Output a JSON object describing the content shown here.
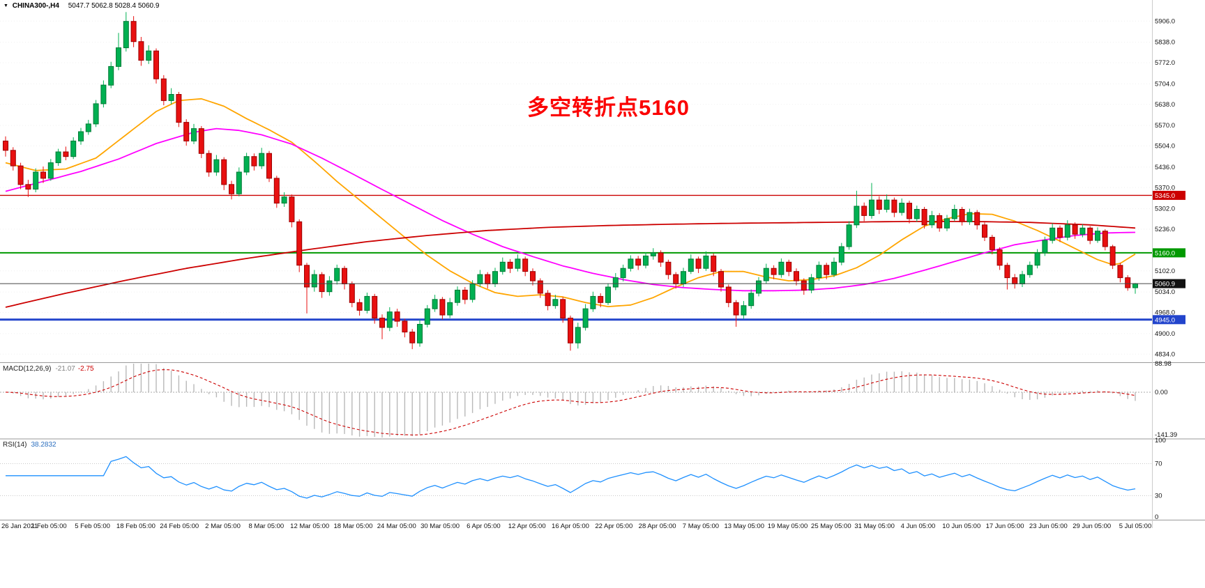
{
  "window": {
    "symbol": "CHINA300-,H4",
    "ohlc": "5047.7 5062.8 5028.4 5060.9",
    "collapse_icon": "▼"
  },
  "annotation": {
    "text": "多空转折点5160",
    "color": "#FB0202"
  },
  "indicators": {
    "macd": {
      "label": "MACD(12,26,9)",
      "value_main": "-21.07",
      "value_signal": "-2.75",
      "scale": [
        "88.98",
        "0.00",
        "-141.39"
      ]
    },
    "rsi": {
      "label": "RSI(14)",
      "value": "38.2832",
      "scale": [
        "100",
        "70",
        "30",
        "0"
      ],
      "levels": [
        70,
        30
      ]
    }
  },
  "chart_data": {
    "type": "candlestick",
    "title": "CHINA300-,H4",
    "up_color": "#00b052",
    "down_color": "#e81010",
    "y_range": [
      4810,
      5938
    ],
    "y_ticks": [
      "5906.0",
      "5838.0",
      "5772.0",
      "5704.0",
      "5638.0",
      "5570.0",
      "5504.0",
      "5436.0",
      "5370.0",
      "5302.0",
      "5236.0",
      "5102.0",
      "5034.0",
      "4968.0",
      "4900.0",
      "4834.0"
    ],
    "x_ticks": [
      "26 Jan 2021",
      "1 Feb 05:00",
      "5 Feb 05:00",
      "18 Feb 05:00",
      "24 Feb 05:00",
      "2 Mar 05:00",
      "8 Mar 05:00",
      "12 Mar 05:00",
      "18 Mar 05:00",
      "24 Mar 05:00",
      "30 Mar 05:00",
      "6 Apr 05:00",
      "12 Apr 05:00",
      "16 Apr 05:00",
      "22 Apr 05:00",
      "28 Apr 05:00",
      "7 May 05:00",
      "13 May 05:00",
      "19 May 05:00",
      "25 May 05:00",
      "31 May 05:00",
      "4 Jun 05:00",
      "10 Jun 05:00",
      "17 Jun 05:00",
      "23 Jun 05:00",
      "29 Jun 05:00",
      "5 Jul 05:00"
    ],
    "hlines": [
      {
        "label": "5345.0",
        "price": 5345.0,
        "color": "#cc0000",
        "width": 1.4
      },
      {
        "label": "5160.0",
        "price": 5160.0,
        "color": "#009900",
        "width": 2
      },
      {
        "label": "4945.0",
        "price": 4945.0,
        "color": "#2244cc",
        "width": 3
      }
    ],
    "current_price": {
      "label": "5060.9",
      "price": 5060.9,
      "color": "#111111"
    },
    "macd_scale": {
      "max": 88.98,
      "min": -141.39
    },
    "rsi_scale": {
      "max": 100,
      "min": 0
    },
    "candles": [
      [
        5520,
        5535,
        5470,
        5490
      ],
      [
        5490,
        5500,
        5425,
        5440
      ],
      [
        5440,
        5450,
        5365,
        5380
      ],
      [
        5380,
        5395,
        5340,
        5365
      ],
      [
        5365,
        5432,
        5355,
        5420
      ],
      [
        5420,
        5438,
        5385,
        5400
      ],
      [
        5400,
        5462,
        5392,
        5450
      ],
      [
        5450,
        5495,
        5440,
        5485
      ],
      [
        5485,
        5502,
        5458,
        5470
      ],
      [
        5470,
        5532,
        5462,
        5520
      ],
      [
        5520,
        5562,
        5508,
        5550
      ],
      [
        5550,
        5588,
        5540,
        5575
      ],
      [
        5575,
        5652,
        5565,
        5640
      ],
      [
        5640,
        5715,
        5628,
        5700
      ],
      [
        5700,
        5775,
        5690,
        5760
      ],
      [
        5760,
        5868,
        5748,
        5820
      ],
      [
        5820,
        5935,
        5808,
        5905
      ],
      [
        5905,
        5922,
        5822,
        5840
      ],
      [
        5840,
        5855,
        5762,
        5780
      ],
      [
        5780,
        5828,
        5768,
        5810
      ],
      [
        5810,
        5818,
        5705,
        5720
      ],
      [
        5720,
        5732,
        5635,
        5650
      ],
      [
        5650,
        5690,
        5638,
        5670
      ],
      [
        5670,
        5678,
        5565,
        5580
      ],
      [
        5580,
        5590,
        5505,
        5520
      ],
      [
        5520,
        5575,
        5510,
        5560
      ],
      [
        5560,
        5568,
        5465,
        5480
      ],
      [
        5480,
        5490,
        5405,
        5420
      ],
      [
        5420,
        5475,
        5408,
        5460
      ],
      [
        5460,
        5468,
        5362,
        5380
      ],
      [
        5380,
        5392,
        5332,
        5350
      ],
      [
        5350,
        5435,
        5342,
        5420
      ],
      [
        5420,
        5482,
        5410,
        5470
      ],
      [
        5470,
        5480,
        5425,
        5440
      ],
      [
        5440,
        5498,
        5430,
        5480
      ],
      [
        5480,
        5488,
        5388,
        5400
      ],
      [
        5400,
        5408,
        5305,
        5320
      ],
      [
        5320,
        5355,
        5308,
        5340
      ],
      [
        5340,
        5348,
        5242,
        5260
      ],
      [
        5260,
        5268,
        5098,
        5120
      ],
      [
        5120,
        5128,
        4965,
        5050
      ],
      [
        5050,
        5105,
        5035,
        5090
      ],
      [
        5090,
        5098,
        5015,
        5035
      ],
      [
        5035,
        5085,
        5022,
        5070
      ],
      [
        5070,
        5122,
        5058,
        5110
      ],
      [
        5110,
        5118,
        5042,
        5060
      ],
      [
        5060,
        5068,
        4985,
        5000
      ],
      [
        5000,
        5012,
        4958,
        4975
      ],
      [
        4975,
        5032,
        4965,
        5020
      ],
      [
        5020,
        5028,
        4932,
        4950
      ],
      [
        4950,
        4962,
        4882,
        4920
      ],
      [
        4920,
        4985,
        4908,
        4970
      ],
      [
        4970,
        4980,
        4922,
        4940
      ],
      [
        4940,
        4948,
        4888,
        4905
      ],
      [
        4905,
        4915,
        4850,
        4870
      ],
      [
        4870,
        4945,
        4858,
        4930
      ],
      [
        4930,
        4992,
        4920,
        4980
      ],
      [
        4980,
        5025,
        4970,
        5010
      ],
      [
        5010,
        5018,
        4945,
        4960
      ],
      [
        4960,
        5015,
        4950,
        5000
      ],
      [
        5000,
        5052,
        4990,
        5040
      ],
      [
        5040,
        5050,
        4995,
        5010
      ],
      [
        5010,
        5072,
        5000,
        5060
      ],
      [
        5060,
        5105,
        5050,
        5090
      ],
      [
        5090,
        5098,
        5045,
        5060
      ],
      [
        5060,
        5112,
        5050,
        5100
      ],
      [
        5100,
        5145,
        5090,
        5130
      ],
      [
        5130,
        5140,
        5095,
        5110
      ],
      [
        5110,
        5155,
        5100,
        5140
      ],
      [
        5140,
        5148,
        5085,
        5100
      ],
      [
        5100,
        5110,
        5055,
        5070
      ],
      [
        5070,
        5078,
        5015,
        5030
      ],
      [
        5030,
        5040,
        4975,
        4990
      ],
      [
        4990,
        5025,
        4980,
        5010
      ],
      [
        5010,
        5018,
        4935,
        4950
      ],
      [
        4950,
        4958,
        4845,
        4870
      ],
      [
        4870,
        4935,
        4852,
        4920
      ],
      [
        4920,
        4995,
        4910,
        4980
      ],
      [
        4980,
        5035,
        4970,
        5020
      ],
      [
        5020,
        5030,
        4985,
        5000
      ],
      [
        5000,
        5062,
        4992,
        5050
      ],
      [
        5050,
        5095,
        5040,
        5080
      ],
      [
        5080,
        5122,
        5068,
        5110
      ],
      [
        5110,
        5152,
        5100,
        5140
      ],
      [
        5140,
        5150,
        5105,
        5120
      ],
      [
        5120,
        5162,
        5110,
        5150
      ],
      [
        5150,
        5175,
        5138,
        5160
      ],
      [
        5160,
        5168,
        5115,
        5130
      ],
      [
        5130,
        5138,
        5075,
        5090
      ],
      [
        5090,
        5098,
        5045,
        5060
      ],
      [
        5060,
        5112,
        5050,
        5100
      ],
      [
        5100,
        5155,
        5092,
        5140
      ],
      [
        5140,
        5148,
        5095,
        5110
      ],
      [
        5110,
        5165,
        5102,
        5150
      ],
      [
        5150,
        5158,
        5085,
        5100
      ],
      [
        5100,
        5108,
        5035,
        5050
      ],
      [
        5050,
        5058,
        4985,
        5000
      ],
      [
        5000,
        5008,
        4922,
        4960
      ],
      [
        4960,
        5005,
        4948,
        4990
      ],
      [
        4990,
        5042,
        4980,
        5030
      ],
      [
        5030,
        5082,
        5020,
        5070
      ],
      [
        5070,
        5125,
        5060,
        5110
      ],
      [
        5110,
        5120,
        5075,
        5090
      ],
      [
        5090,
        5142,
        5080,
        5130
      ],
      [
        5130,
        5138,
        5085,
        5100
      ],
      [
        5100,
        5110,
        5055,
        5070
      ],
      [
        5070,
        5078,
        5025,
        5040
      ],
      [
        5040,
        5092,
        5030,
        5080
      ],
      [
        5080,
        5132,
        5070,
        5120
      ],
      [
        5120,
        5128,
        5075,
        5090
      ],
      [
        5090,
        5145,
        5082,
        5130
      ],
      [
        5130,
        5192,
        5120,
        5180
      ],
      [
        5180,
        5262,
        5170,
        5250
      ],
      [
        5250,
        5360,
        5240,
        5310
      ],
      [
        5310,
        5322,
        5262,
        5280
      ],
      [
        5280,
        5385,
        5270,
        5330
      ],
      [
        5330,
        5342,
        5285,
        5300
      ],
      [
        5300,
        5348,
        5290,
        5330
      ],
      [
        5330,
        5338,
        5275,
        5290
      ],
      [
        5290,
        5335,
        5280,
        5320
      ],
      [
        5320,
        5328,
        5255,
        5270
      ],
      [
        5270,
        5312,
        5260,
        5300
      ],
      [
        5300,
        5308,
        5238,
        5250
      ],
      [
        5250,
        5295,
        5240,
        5280
      ],
      [
        5280,
        5288,
        5228,
        5240
      ],
      [
        5240,
        5282,
        5230,
        5270
      ],
      [
        5270,
        5315,
        5262,
        5300
      ],
      [
        5300,
        5308,
        5248,
        5260
      ],
      [
        5260,
        5302,
        5250,
        5290
      ],
      [
        5290,
        5298,
        5235,
        5250
      ],
      [
        5250,
        5258,
        5198,
        5210
      ],
      [
        5210,
        5218,
        5155,
        5170
      ],
      [
        5170,
        5178,
        5105,
        5120
      ],
      [
        5120,
        5128,
        5042,
        5080
      ],
      [
        5080,
        5092,
        5045,
        5060
      ],
      [
        5060,
        5102,
        5050,
        5090
      ],
      [
        5090,
        5132,
        5080,
        5120
      ],
      [
        5120,
        5172,
        5110,
        5160
      ],
      [
        5160,
        5212,
        5150,
        5200
      ],
      [
        5200,
        5255,
        5190,
        5240
      ],
      [
        5240,
        5248,
        5195,
        5210
      ],
      [
        5210,
        5265,
        5200,
        5250
      ],
      [
        5250,
        5258,
        5205,
        5220
      ],
      [
        5220,
        5252,
        5210,
        5240
      ],
      [
        5240,
        5246,
        5188,
        5200
      ],
      [
        5200,
        5242,
        5192,
        5230
      ],
      [
        5230,
        5236,
        5168,
        5180
      ],
      [
        5180,
        5186,
        5108,
        5120
      ],
      [
        5120,
        5128,
        5065,
        5080
      ],
      [
        5080,
        5088,
        5038,
        5047.7
      ],
      [
        5047.7,
        5062.8,
        5028.4,
        5060.9
      ]
    ],
    "moving_averages": [
      {
        "name": "ma-fast",
        "color": "#ffa500",
        "points": [
          [
            0,
            5450
          ],
          [
            4,
            5425
          ],
          [
            8,
            5430
          ],
          [
            12,
            5465
          ],
          [
            16,
            5540
          ],
          [
            20,
            5615
          ],
          [
            23,
            5650
          ],
          [
            26,
            5656
          ],
          [
            29,
            5632
          ],
          [
            32,
            5592
          ],
          [
            35,
            5556
          ],
          [
            38,
            5516
          ],
          [
            41,
            5455
          ],
          [
            44,
            5390
          ],
          [
            47,
            5330
          ],
          [
            50,
            5270
          ],
          [
            53,
            5210
          ],
          [
            56,
            5152
          ],
          [
            59,
            5102
          ],
          [
            62,
            5062
          ],
          [
            65,
            5032
          ],
          [
            68,
            5020
          ],
          [
            71,
            5025
          ],
          [
            74,
            5018
          ],
          [
            77,
            5000
          ],
          [
            80,
            4987
          ],
          [
            83,
            4992
          ],
          [
            86,
            5016
          ],
          [
            89,
            5050
          ],
          [
            92,
            5080
          ],
          [
            95,
            5100
          ],
          [
            98,
            5100
          ],
          [
            101,
            5082
          ],
          [
            104,
            5070
          ],
          [
            107,
            5074
          ],
          [
            110,
            5086
          ],
          [
            113,
            5112
          ],
          [
            116,
            5152
          ],
          [
            119,
            5202
          ],
          [
            122,
            5246
          ],
          [
            125,
            5270
          ],
          [
            128,
            5286
          ],
          [
            131,
            5284
          ],
          [
            134,
            5262
          ],
          [
            137,
            5232
          ],
          [
            140,
            5198
          ],
          [
            143,
            5162
          ],
          [
            145,
            5138
          ],
          [
            147,
            5122
          ],
          [
            148,
            5126
          ],
          [
            150,
            5156
          ]
        ]
      },
      {
        "name": "ma-mid",
        "color": "#ff00ff",
        "points": [
          [
            0,
            5358
          ],
          [
            5,
            5390
          ],
          [
            10,
            5422
          ],
          [
            15,
            5462
          ],
          [
            20,
            5512
          ],
          [
            25,
            5548
          ],
          [
            28,
            5560
          ],
          [
            31,
            5554
          ],
          [
            34,
            5540
          ],
          [
            38,
            5510
          ],
          [
            42,
            5465
          ],
          [
            46,
            5415
          ],
          [
            50,
            5364
          ],
          [
            54,
            5314
          ],
          [
            58,
            5264
          ],
          [
            62,
            5220
          ],
          [
            66,
            5180
          ],
          [
            70,
            5148
          ],
          [
            74,
            5118
          ],
          [
            78,
            5094
          ],
          [
            82,
            5074
          ],
          [
            86,
            5058
          ],
          [
            90,
            5048
          ],
          [
            94,
            5042
          ],
          [
            98,
            5038
          ],
          [
            102,
            5038
          ],
          [
            106,
            5040
          ],
          [
            110,
            5046
          ],
          [
            114,
            5058
          ],
          [
            118,
            5078
          ],
          [
            122,
            5104
          ],
          [
            126,
            5132
          ],
          [
            130,
            5160
          ],
          [
            134,
            5186
          ],
          [
            138,
            5202
          ],
          [
            142,
            5216
          ],
          [
            146,
            5224
          ],
          [
            150,
            5226
          ]
        ]
      },
      {
        "name": "ma-slow",
        "color": "#cc0000",
        "points": [
          [
            0,
            4985
          ],
          [
            8,
            5030
          ],
          [
            16,
            5072
          ],
          [
            24,
            5110
          ],
          [
            32,
            5142
          ],
          [
            40,
            5170
          ],
          [
            48,
            5196
          ],
          [
            56,
            5216
          ],
          [
            64,
            5232
          ],
          [
            72,
            5242
          ],
          [
            80,
            5248
          ],
          [
            88,
            5252
          ],
          [
            96,
            5255
          ],
          [
            104,
            5257
          ],
          [
            112,
            5259
          ],
          [
            120,
            5261
          ],
          [
            128,
            5261
          ],
          [
            136,
            5258
          ],
          [
            144,
            5250
          ],
          [
            150,
            5240
          ]
        ]
      }
    ]
  }
}
